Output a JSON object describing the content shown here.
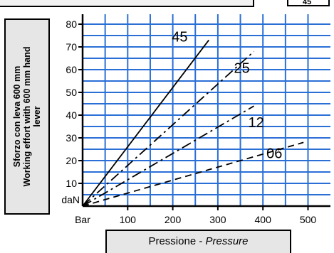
{
  "header_tag": "45",
  "y_title": [
    "Sforzo con leva 600 mm",
    "Working effort with 600 mm hand",
    "lever"
  ],
  "x_title": {
    "main": "Pressione - ",
    "italic": "Pressure"
  },
  "y_unit": "daN",
  "x_unit": "Bar",
  "chart_data": {
    "type": "line",
    "title": "",
    "xlabel": "Pressione - Pressure",
    "ylabel": "Sforzo con leva 600 mm / Working effort with 600 mm hand lever",
    "xlim": [
      0,
      540
    ],
    "ylim": [
      0,
      84
    ],
    "x_ticks": [
      100,
      200,
      300,
      400,
      500
    ],
    "y_ticks": [
      10,
      20,
      30,
      40,
      50,
      60,
      70,
      80
    ],
    "grid": true,
    "colors": {
      "grid": "#2a6fd6",
      "line": "#000000",
      "panel": "#e6e6e6"
    },
    "series": [
      {
        "name": "45",
        "style": "solid",
        "x": [
          0,
          280
        ],
        "y": [
          0,
          73
        ]
      },
      {
        "name": "25",
        "style": "dash-dot",
        "x": [
          0,
          380
        ],
        "y": [
          0,
          68
        ]
      },
      {
        "name": "12",
        "style": "dash-dot",
        "x": [
          0,
          380
        ],
        "y": [
          0,
          44
        ]
      },
      {
        "name": "06",
        "style": "dashed",
        "x": [
          0,
          490
        ],
        "y": [
          0,
          28
        ]
      }
    ]
  }
}
